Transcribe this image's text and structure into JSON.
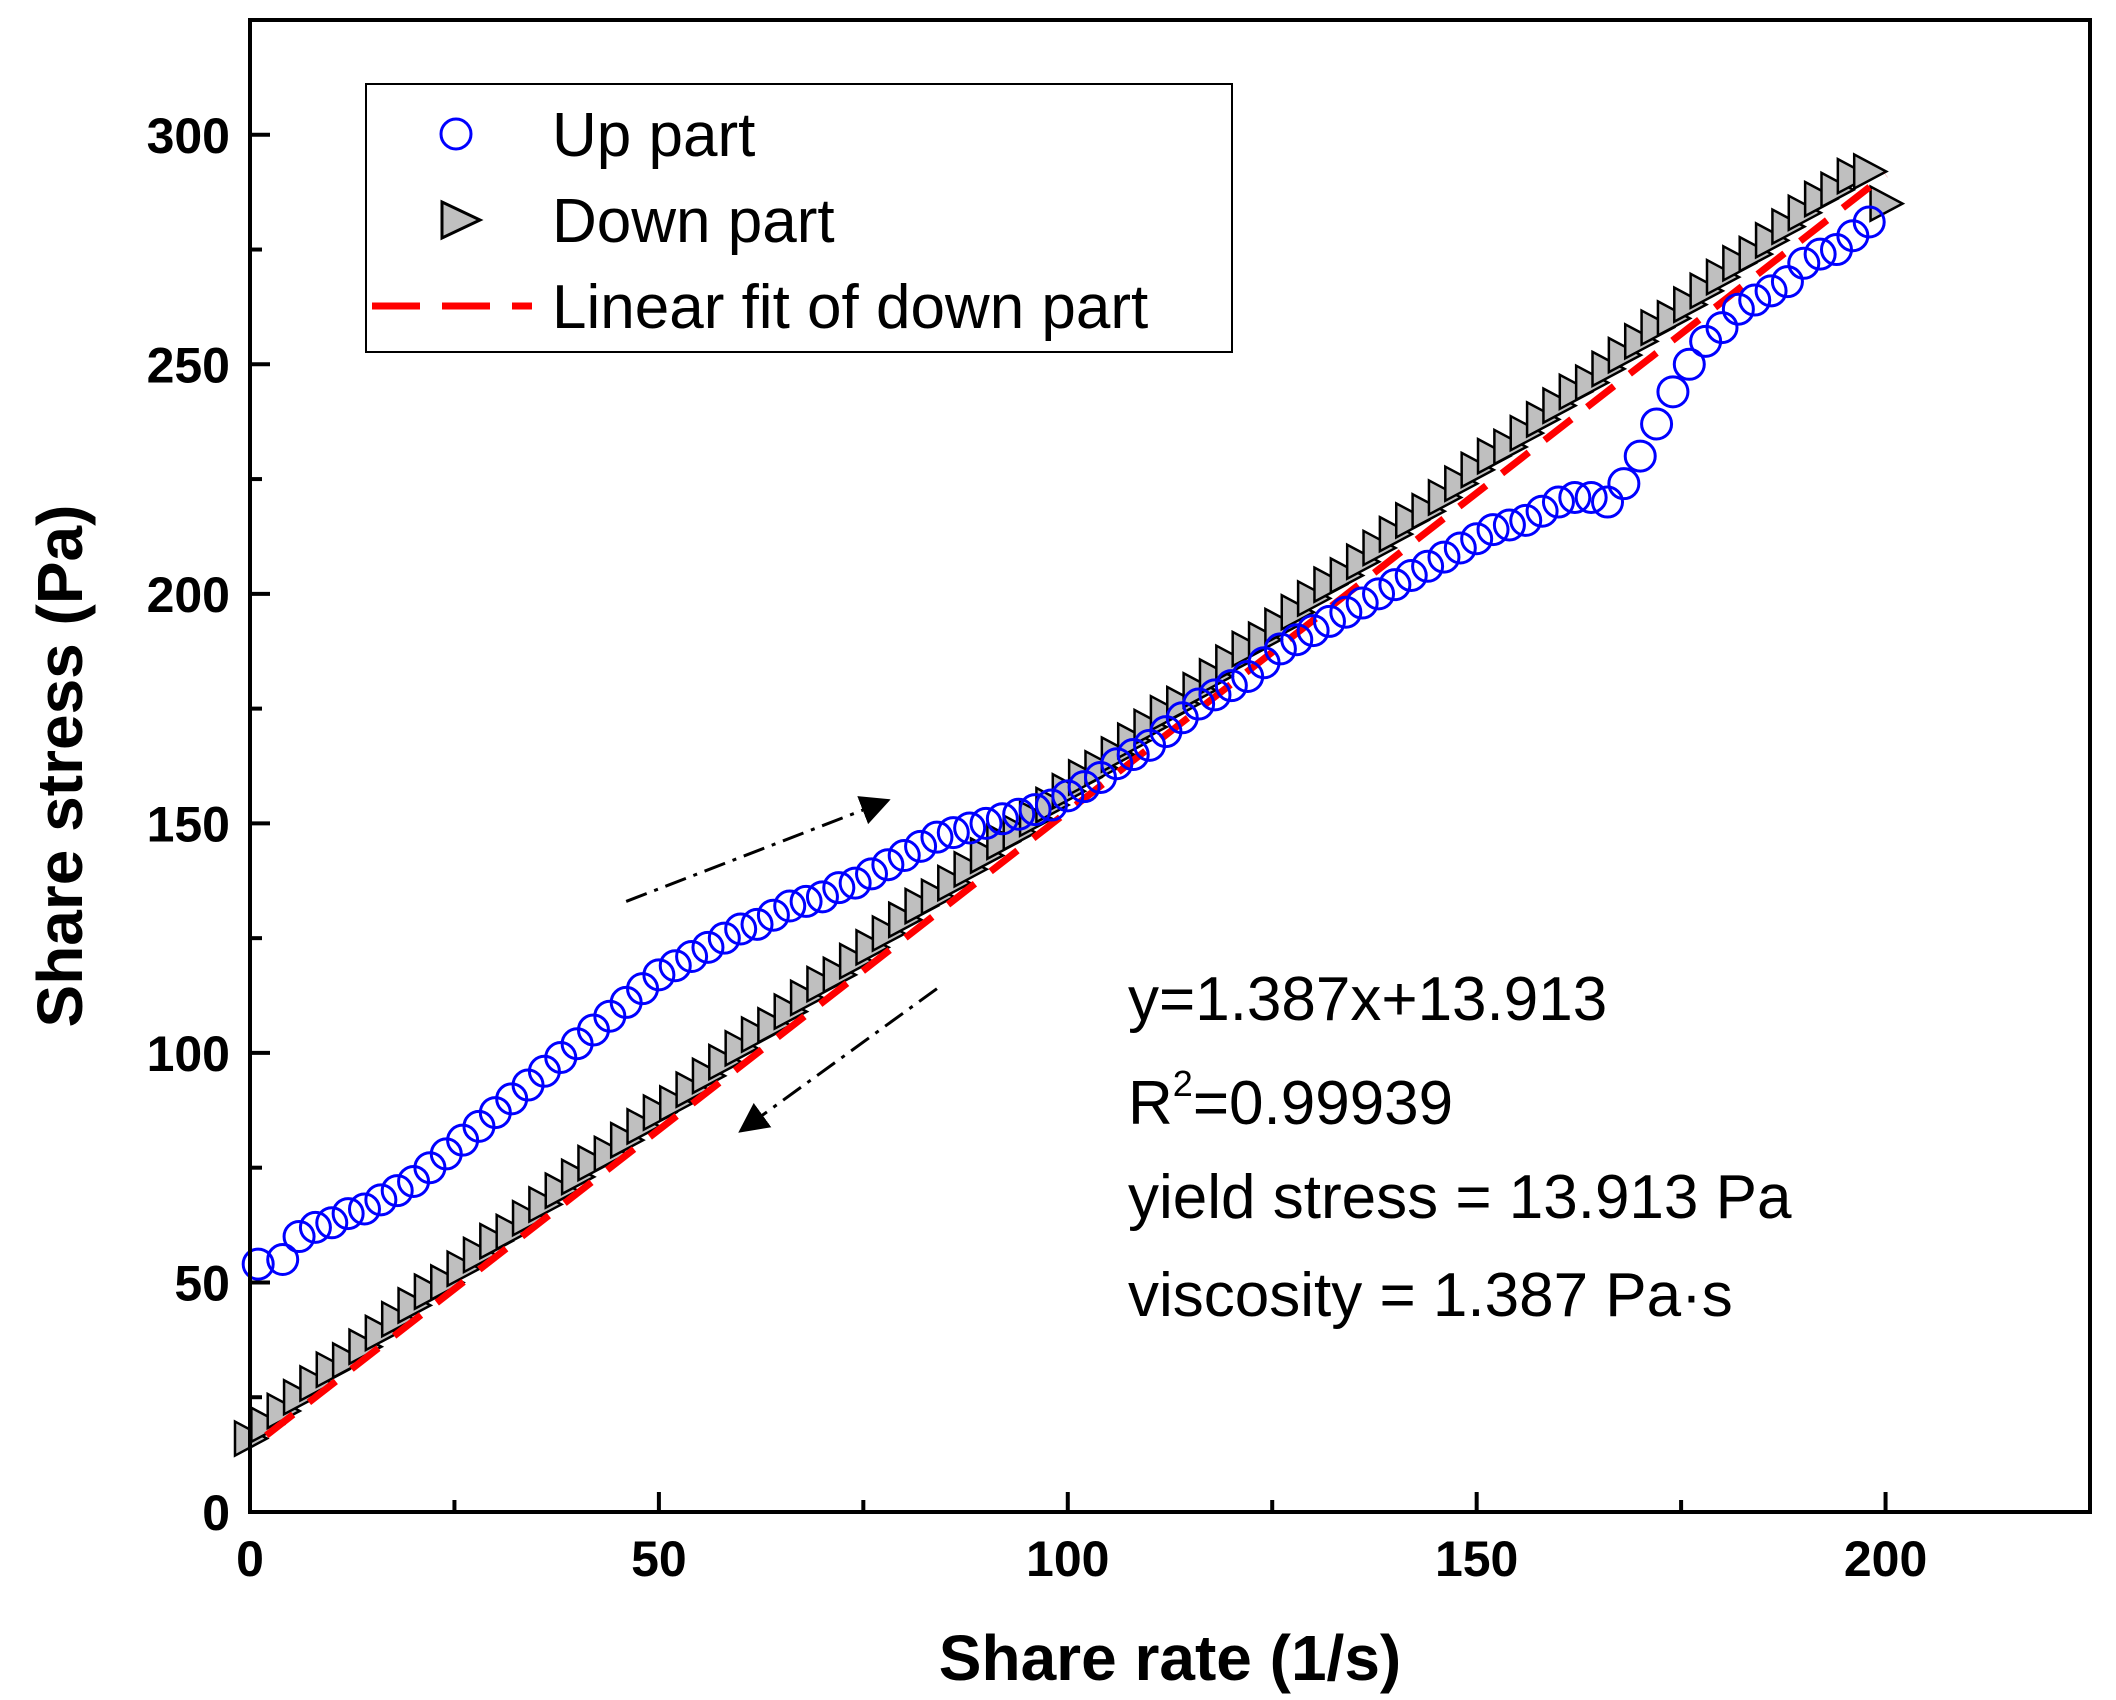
{
  "chart_data": {
    "type": "scatter",
    "title": "",
    "xlabel": "Share rate (1/s)",
    "ylabel": "Share stress (Pa)",
    "xlim": [
      0,
      225
    ],
    "ylim": [
      0,
      325
    ],
    "x_ticks": [
      0,
      50,
      100,
      150,
      200
    ],
    "y_ticks": [
      0,
      50,
      100,
      150,
      200,
      250,
      300
    ],
    "x_tick_labels": [
      "0",
      "50",
      "100",
      "150",
      "200"
    ],
    "y_tick_labels": [
      "0",
      "50",
      "100",
      "150",
      "200",
      "250",
      "300"
    ],
    "grid": false,
    "legend_position": "top-left",
    "series": [
      {
        "name": "Up part",
        "marker": "open-circle",
        "color": "#0000ff",
        "x": [
          1,
          4,
          6,
          8,
          10,
          12,
          14,
          16,
          18,
          20,
          22,
          24,
          26,
          28,
          30,
          32,
          34,
          36,
          38,
          40,
          42,
          44,
          46,
          48,
          50,
          52,
          54,
          56,
          58,
          60,
          62,
          64,
          66,
          68,
          70,
          72,
          74,
          76,
          78,
          80,
          82,
          84,
          86,
          88,
          90,
          92,
          94,
          96,
          98,
          100,
          102,
          104,
          106,
          108,
          110,
          112,
          114,
          116,
          118,
          120,
          122,
          124,
          126,
          128,
          130,
          132,
          134,
          136,
          138,
          140,
          142,
          144,
          146,
          148,
          150,
          152,
          154,
          156,
          158,
          160,
          162,
          164,
          166,
          168,
          170,
          172,
          174,
          176,
          178,
          180,
          182,
          184,
          186,
          188,
          190,
          192,
          194,
          196,
          198
        ],
        "values": [
          54,
          55,
          60,
          62,
          63,
          65,
          66,
          68,
          70,
          72,
          75,
          78,
          81,
          84,
          87,
          90,
          93,
          96,
          99,
          102,
          105,
          108,
          111,
          114,
          117,
          119,
          121,
          123,
          125,
          127,
          128,
          130,
          132,
          133,
          134,
          136,
          137,
          139,
          141,
          143,
          145,
          147,
          148,
          149,
          150,
          151,
          152,
          153,
          154,
          156,
          158,
          160,
          163,
          165,
          167,
          170,
          173,
          176,
          178,
          180,
          182,
          185,
          188,
          190,
          192,
          194,
          196,
          198,
          200,
          202,
          204,
          206,
          208,
          210,
          212,
          214,
          215,
          216,
          218,
          220,
          221,
          221,
          220,
          224,
          230,
          237,
          244,
          250,
          255,
          258,
          262,
          264,
          266,
          268,
          272,
          274,
          275,
          278,
          281
        ]
      },
      {
        "name": "Down part",
        "marker": "right-triangle",
        "color": "#bfbfbf",
        "x": [
          0,
          2,
          4,
          6,
          8,
          10,
          12,
          14,
          16,
          18,
          20,
          22,
          24,
          26,
          28,
          30,
          32,
          34,
          36,
          38,
          40,
          42,
          44,
          46,
          48,
          50,
          52,
          54,
          56,
          58,
          60,
          62,
          64,
          66,
          68,
          70,
          72,
          74,
          76,
          78,
          80,
          82,
          84,
          86,
          88,
          90,
          92,
          94,
          96,
          98,
          100,
          102,
          104,
          106,
          108,
          110,
          112,
          114,
          116,
          118,
          120,
          122,
          124,
          126,
          128,
          130,
          132,
          134,
          136,
          138,
          140,
          142,
          144,
          146,
          148,
          150,
          152,
          154,
          156,
          158,
          160,
          162,
          164,
          166,
          168,
          170,
          172,
          174,
          176,
          178,
          180,
          182,
          184,
          186,
          188,
          190,
          192,
          194,
          196,
          198,
          200
        ],
        "values": [
          16,
          19,
          22,
          25,
          28,
          31,
          33,
          36,
          39,
          42,
          45,
          48,
          50,
          53,
          56,
          59,
          61,
          64,
          67,
          70,
          73,
          76,
          78,
          81,
          84,
          87,
          89,
          92,
          95,
          98,
          101,
          104,
          106,
          109,
          112,
          115,
          117,
          120,
          123,
          126,
          129,
          132,
          134,
          137,
          140,
          143,
          146,
          148,
          151,
          154,
          157,
          160,
          162,
          165,
          168,
          171,
          174,
          176,
          179,
          182,
          185,
          188,
          190,
          193,
          196,
          199,
          202,
          204,
          207,
          210,
          213,
          216,
          218,
          221,
          224,
          227,
          230,
          232,
          235,
          238,
          241,
          244,
          246,
          249,
          252,
          255,
          258,
          260,
          263,
          266,
          269,
          272,
          274,
          277,
          280,
          283,
          286,
          288,
          291,
          292,
          285
        ]
      },
      {
        "name": "Linear fit of down part",
        "style": "dashed-line",
        "color": "#ff0000",
        "slope": 1.387,
        "intercept": 13.913,
        "x_range": [
          2,
          200
        ]
      }
    ],
    "annotations": {
      "equation": "y=1.387x+13.913",
      "r2_base": "R",
      "r2_exponent": "2",
      "r2_value": "=0.99939",
      "yield_stress": "yield stress = 13.913 Pa",
      "viscosity": "viscosity = 1.387 Pa·s"
    },
    "direction_arrows": [
      {
        "name": "up-direction-arrow",
        "from": [
          46,
          133
        ],
        "to": [
          78,
          155
        ]
      },
      {
        "name": "down-direction-arrow",
        "from": [
          84,
          114
        ],
        "to": [
          60,
          83
        ]
      }
    ]
  },
  "legend": {
    "items": [
      {
        "label": "Up part"
      },
      {
        "label": "Down part"
      },
      {
        "label": "Linear fit of down part"
      }
    ]
  }
}
